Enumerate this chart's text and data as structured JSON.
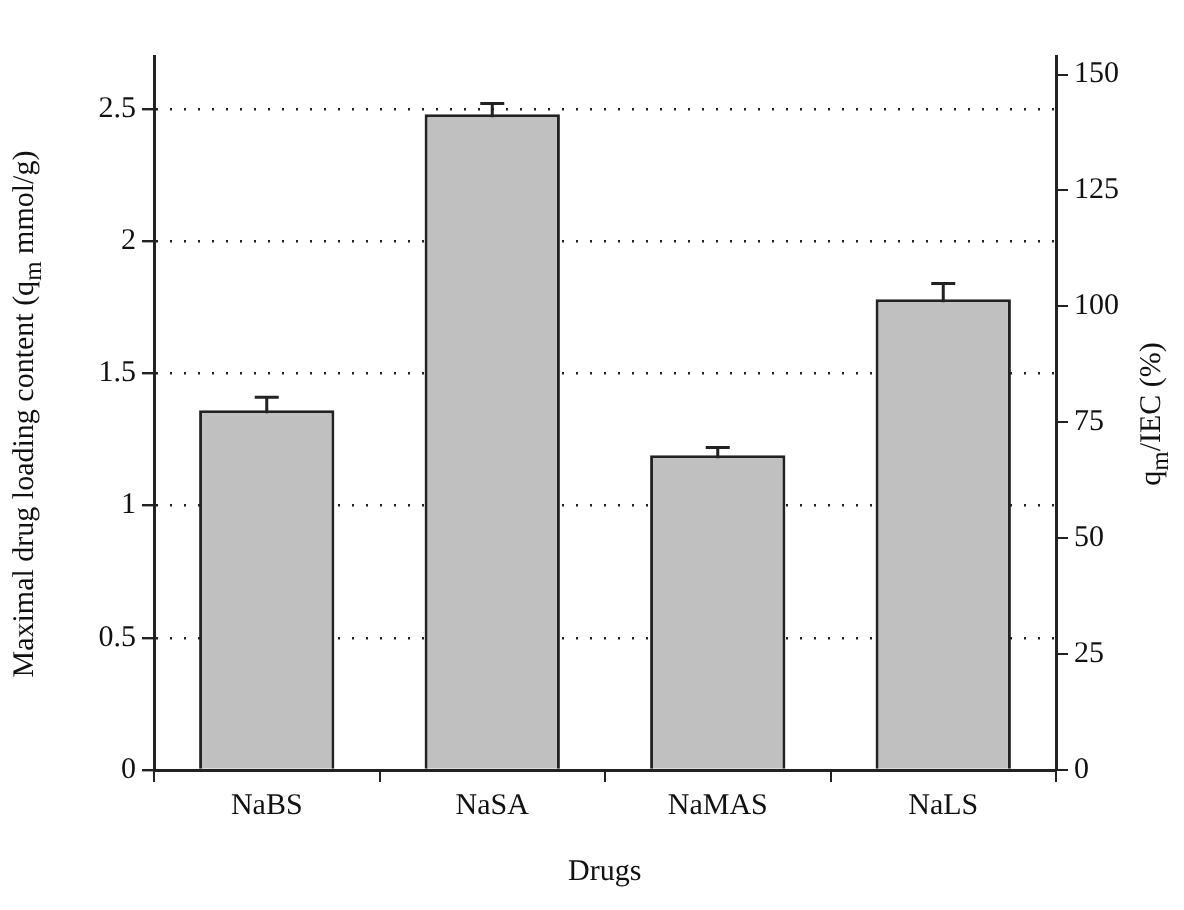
{
  "chart_data": {
    "type": "bar",
    "xlabel": "Drugs",
    "ylabel": "Maximal drug loading content (q$_{m}$ mmol/g)",
    "y2label": "q$_{m}$/IEC (%)",
    "categories": [
      "NaBS",
      "NaSA",
      "NaMAS",
      "NaLS"
    ],
    "series": [
      {
        "color": "#c0c0c0",
        "values": [
          1.36,
          2.48,
          1.19,
          1.78
        ],
        "errors": [
          0.05,
          0.04,
          0.03,
          0.06
        ]
      }
    ],
    "ylim": [
      0,
      2.7
    ],
    "yticks": [
      0,
      0.5,
      1,
      1.5,
      2,
      2.5
    ],
    "y2lim": [
      0,
      154
    ],
    "y2ticks": [
      0,
      25,
      50,
      75,
      100,
      125,
      150
    ],
    "grid": "y",
    "legend": false
  }
}
